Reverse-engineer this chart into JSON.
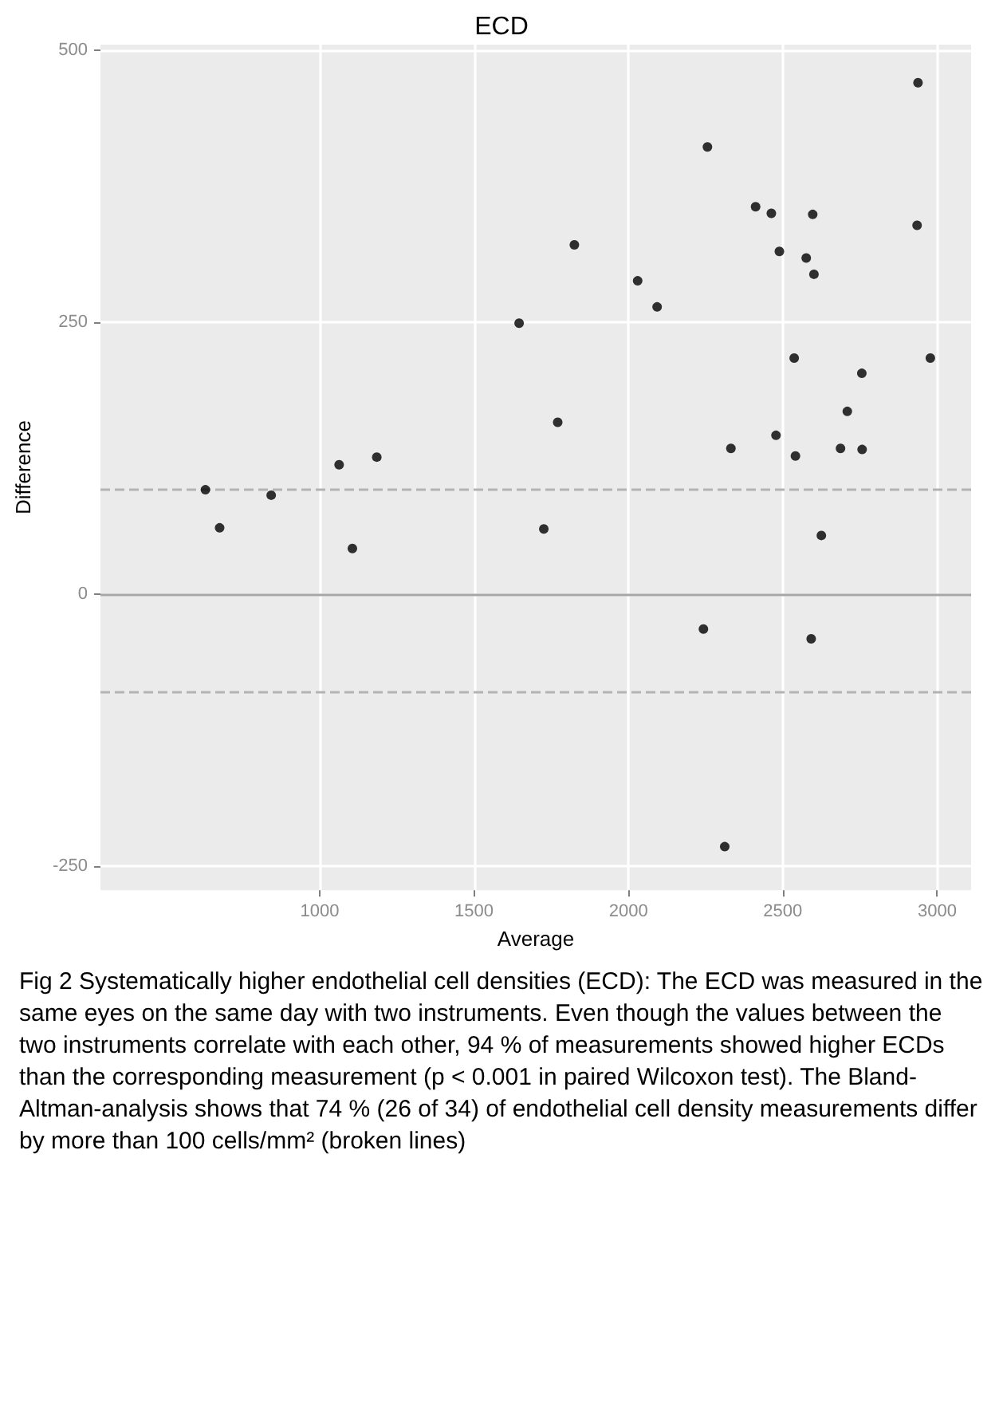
{
  "chart_data": {
    "type": "scatter",
    "title": "ECD",
    "xlabel": "Average",
    "ylabel": "Difference",
    "x": [
      630,
      676,
      843,
      1063,
      1106,
      1185,
      1646,
      1825,
      1771,
      1726,
      2030,
      2093,
      2256,
      2243,
      2312,
      2332,
      2412,
      2463,
      2489,
      2478,
      2537,
      2541,
      2576,
      2597,
      2601,
      2592,
      2625,
      2687,
      2709,
      2756,
      2757,
      2938,
      2935,
      2978
    ],
    "series": [
      {
        "color": "#000000",
        "values": [
          96,
          61,
          91,
          119,
          42,
          126,
          249,
          321,
          158,
          60,
          288,
          264,
          411,
          -32,
          -232,
          134,
          356,
          350,
          315,
          146,
          217,
          127,
          309,
          349,
          294,
          -41,
          54,
          134,
          168,
          203,
          133,
          470,
          339,
          217
        ]
      }
    ],
    "xlim": [
      290,
      3110
    ],
    "ylim": [
      -272,
      505
    ],
    "xticks": [
      1000,
      1500,
      2000,
      2500,
      3000
    ],
    "yticks": [
      -250,
      0,
      250,
      500
    ],
    "grid": true,
    "marker": "circle",
    "ref_lines": [
      {
        "axis": "y",
        "value": 0,
        "color": "#a6a6a6",
        "line_style": "solid"
      },
      {
        "axis": "y",
        "value": 96,
        "color": "#b3b3b3",
        "line_style": "dashed"
      },
      {
        "axis": "y",
        "value": -90,
        "color": "#b3b3b3",
        "line_style": "dashed"
      }
    ],
    "annotations": [
      "Fig 2 Systematically higher endothelial cell densities (ECD): The ECD was measured in the same eyes on the same day with two instruments. Even though the values between the two instruments correlate with each other, 94 % of measurements showed higher ECDs than the corresponding measurement (p < 0.001 in paired Wilcoxon test). The Bland-Altman-analysis shows that 74 % (26 of 34) of endothelial cell density measurements differ by more than 100 cells/mm² (broken lines)"
    ]
  }
}
